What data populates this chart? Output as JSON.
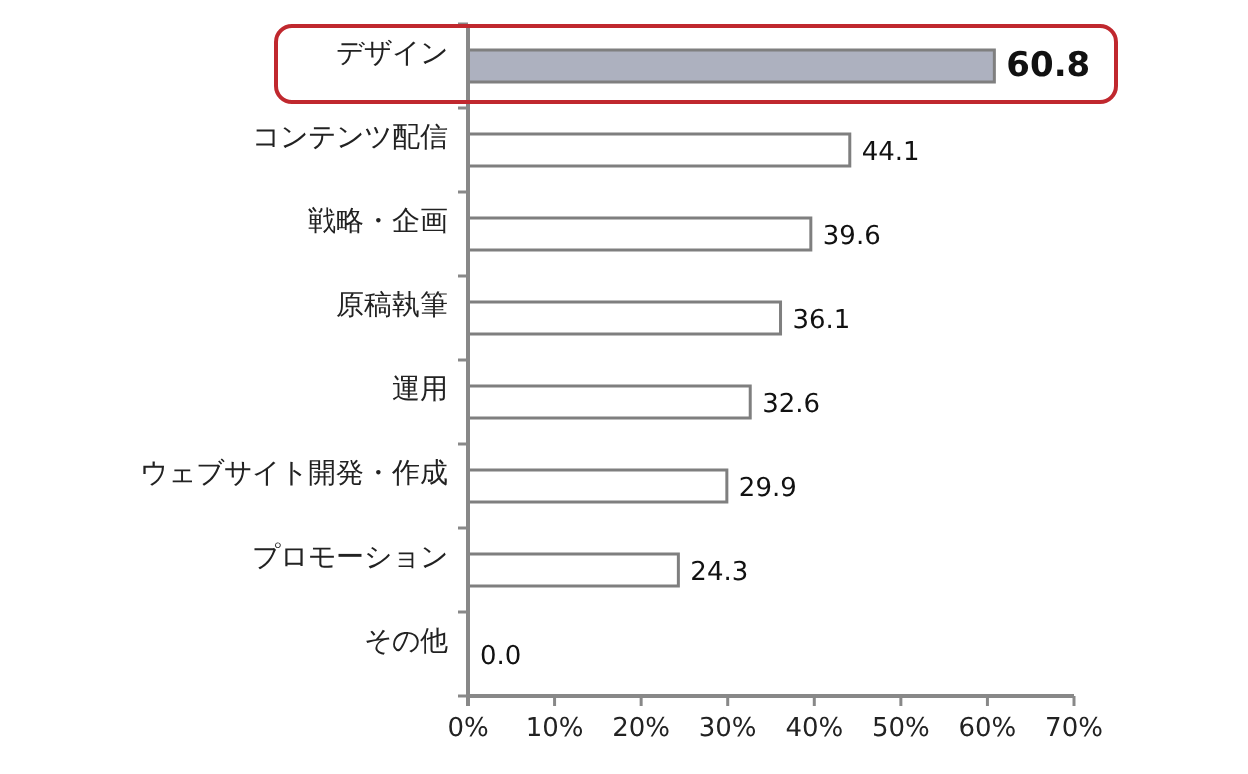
{
  "chart_data": {
    "type": "bar",
    "orientation": "horizontal",
    "categories": [
      "デザイン",
      "コンテンツ配信",
      "戦略・企画",
      "原稿執筆",
      "運用",
      "ウェブサイト開発・作成",
      "プロモーション",
      "その他"
    ],
    "values": [
      60.8,
      44.1,
      39.6,
      36.1,
      32.6,
      29.9,
      24.3,
      0.0
    ],
    "value_labels": [
      "60.8",
      "44.1",
      "39.6",
      "36.1",
      "32.6",
      "29.9",
      "24.3",
      "0.0"
    ],
    "colors": [
      "#adb1bf",
      "#ffffff",
      "#ffffff",
      "#ffffff",
      "#ffffff",
      "#ffffff",
      "#ffffff",
      "#ffffff"
    ],
    "xlim": [
      0,
      70
    ],
    "xticks": [
      {
        "value": 0,
        "label": "0%"
      },
      {
        "value": 10,
        "label": "10%"
      },
      {
        "value": 20,
        "label": "20%"
      },
      {
        "value": 30,
        "label": "30%"
      },
      {
        "value": 40,
        "label": "40%"
      },
      {
        "value": 50,
        "label": "50%"
      },
      {
        "value": 60,
        "label": "60%"
      },
      {
        "value": 70,
        "label": "70%"
      }
    ],
    "grid": false
  }
}
